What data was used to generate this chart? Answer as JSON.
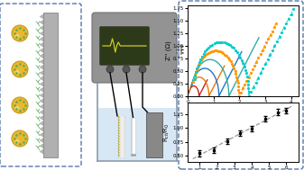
{
  "outer_bg": "#ffffff",
  "dashed_box_color": "#5577aa",
  "water_color": "#c8ddf0",
  "water_alpha": 0.7,
  "eis_colors": [
    "#dd3333",
    "#ee6622",
    "#3399ee",
    "#11bbcc",
    "#ffbb00",
    "#00dddd"
  ],
  "eis_dotted": [
    false,
    false,
    false,
    false,
    true,
    true
  ],
  "cal_color": "#888888",
  "axis_label_fontsize": 5.0,
  "tick_fontsize": 4.0,
  "screen_bg": "#2d3a1a",
  "waveform_color": "#cccc22",
  "instrument_gray": "#939393",
  "instrument_dark": "#707070",
  "knob_color": "#555555",
  "beaker_line": "#8899aa",
  "electrode_light": "#eeeeee",
  "electrode_gray": "#888888",
  "gold_fill": "#e8b830",
  "gold_edge": "#c89818",
  "green_linker": "#55aa55",
  "left_box_color": "#5577aa",
  "right_box_color": "#5577aa"
}
